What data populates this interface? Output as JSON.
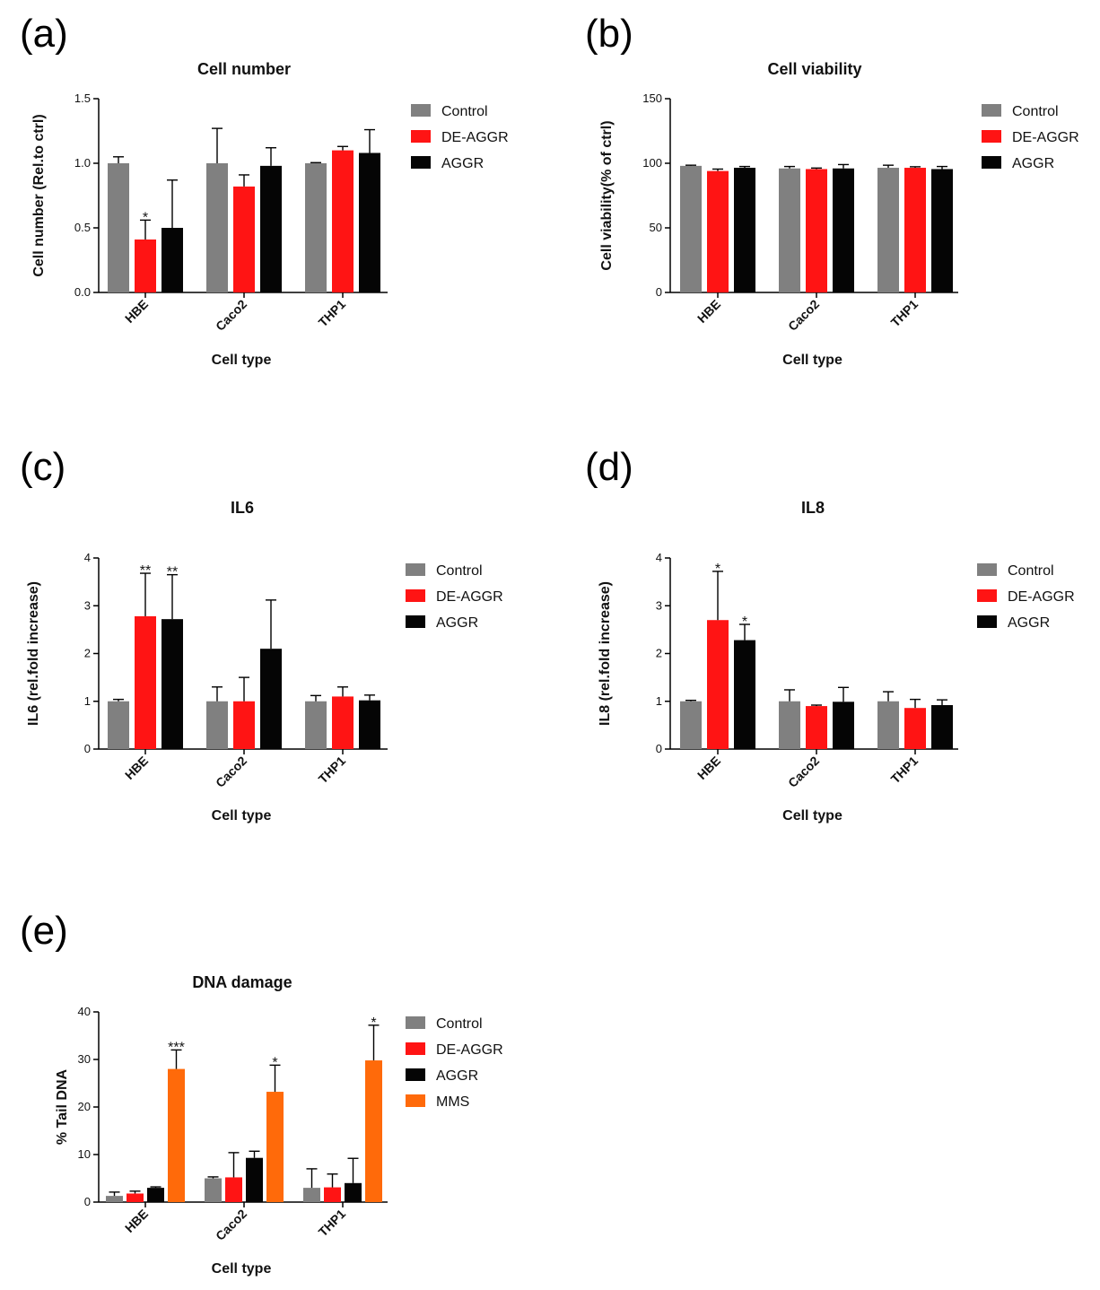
{
  "colors": {
    "Control": "#808080",
    "DE-AGGR": "#ff1414",
    "AGGR": "#050505",
    "MMS": "#ff6a0a"
  },
  "chart_data": [
    {
      "panel": "(a)",
      "type": "bar",
      "title": "Cell number",
      "xlabel": "Cell type",
      "ylabel": "Cell number (Rel.to ctrl)",
      "ylim": [
        0,
        1.5
      ],
      "yticks": [
        "0.0",
        "0.5",
        "1.0",
        "1.5"
      ],
      "ytick_values": [
        0,
        0.5,
        1.0,
        1.5
      ],
      "categories": [
        "HBE",
        "Caco2",
        "THP1"
      ],
      "legend": [
        "Control",
        "DE-AGGR",
        "AGGR"
      ],
      "series": [
        {
          "name": "Control",
          "values": [
            1.0,
            1.0,
            1.0
          ],
          "errors": [
            0.05,
            0.27,
            0.005
          ],
          "sig": [
            "",
            "",
            ""
          ]
        },
        {
          "name": "DE-AGGR",
          "values": [
            0.41,
            0.82,
            1.1
          ],
          "errors": [
            0.15,
            0.09,
            0.03
          ],
          "sig": [
            "*",
            "",
            ""
          ]
        },
        {
          "name": "AGGR",
          "values": [
            0.5,
            0.98,
            1.08
          ],
          "errors": [
            0.37,
            0.14,
            0.18
          ],
          "sig": [
            "",
            "",
            ""
          ]
        }
      ]
    },
    {
      "panel": "(b)",
      "type": "bar",
      "title": "Cell viability",
      "xlabel": "Cell type",
      "ylabel": "Cell viability(% of ctrl)",
      "ylim": [
        0,
        150
      ],
      "yticks": [
        "0",
        "50",
        "100",
        "150"
      ],
      "ytick_values": [
        0,
        50,
        100,
        150
      ],
      "categories": [
        "HBE",
        "Caco2",
        "THP1"
      ],
      "legend": [
        "Control",
        "DE-AGGR",
        "AGGR"
      ],
      "series": [
        {
          "name": "Control",
          "values": [
            98,
            96,
            96.5
          ],
          "errors": [
            0.5,
            1.5,
            2
          ],
          "sig": [
            "",
            "",
            ""
          ]
        },
        {
          "name": "DE-AGGR",
          "values": [
            94,
            95.5,
            96.5
          ],
          "errors": [
            1.5,
            0.8,
            0.8
          ],
          "sig": [
            "",
            "",
            ""
          ]
        },
        {
          "name": "AGGR",
          "values": [
            96.5,
            96,
            95.5
          ],
          "errors": [
            1,
            3,
            2
          ],
          "sig": [
            "",
            "",
            ""
          ]
        }
      ]
    },
    {
      "panel": "(c)",
      "type": "bar",
      "title": "IL6",
      "xlabel": "Cell type",
      "ylabel": "IL6 (rel.fold increase)",
      "ylim": [
        0,
        4
      ],
      "yticks": [
        "0",
        "1",
        "2",
        "3",
        "4"
      ],
      "ytick_values": [
        0,
        1,
        2,
        3,
        4
      ],
      "categories": [
        "HBE",
        "Caco2",
        "THP1"
      ],
      "legend": [
        "Control",
        "DE-AGGR",
        "AGGR"
      ],
      "series": [
        {
          "name": "Control",
          "values": [
            1.0,
            1.0,
            1.0
          ],
          "errors": [
            0.04,
            0.3,
            0.12
          ],
          "sig": [
            "",
            "",
            ""
          ]
        },
        {
          "name": "DE-AGGR",
          "values": [
            2.78,
            1.0,
            1.1
          ],
          "errors": [
            0.9,
            0.5,
            0.2
          ],
          "sig": [
            "**",
            "",
            ""
          ]
        },
        {
          "name": "AGGR",
          "values": [
            2.72,
            2.1,
            1.02
          ],
          "errors": [
            0.93,
            1.02,
            0.11
          ],
          "sig": [
            "**",
            "",
            ""
          ]
        }
      ]
    },
    {
      "panel": "(d)",
      "type": "bar",
      "title": "IL8",
      "xlabel": "Cell type",
      "ylabel": "IL8 (rel.fold increase)",
      "ylim": [
        0,
        4
      ],
      "yticks": [
        "0",
        "1",
        "2",
        "3",
        "4"
      ],
      "ytick_values": [
        0,
        1,
        2,
        3,
        4
      ],
      "categories": [
        "HBE",
        "Caco2",
        "THP1"
      ],
      "legend": [
        "Control",
        "DE-AGGR",
        "AGGR"
      ],
      "series": [
        {
          "name": "Control",
          "values": [
            1.0,
            1.0,
            1.0
          ],
          "errors": [
            0.02,
            0.24,
            0.2
          ],
          "sig": [
            "",
            "",
            ""
          ]
        },
        {
          "name": "DE-AGGR",
          "values": [
            2.7,
            0.9,
            0.86
          ],
          "errors": [
            1.02,
            0.02,
            0.18
          ],
          "sig": [
            "*",
            "",
            ""
          ]
        },
        {
          "name": "AGGR",
          "values": [
            2.28,
            0.99,
            0.92
          ],
          "errors": [
            0.33,
            0.3,
            0.11
          ],
          "sig": [
            "*",
            "",
            ""
          ]
        }
      ]
    },
    {
      "panel": "(e)",
      "type": "bar",
      "title": "DNA damage",
      "xlabel": "Cell type",
      "ylabel": "% Tail DNA",
      "ylim": [
        0,
        40
      ],
      "yticks": [
        "0",
        "10",
        "20",
        "30",
        "40"
      ],
      "ytick_values": [
        0,
        10,
        20,
        30,
        40
      ],
      "categories": [
        "HBE",
        "Caco2",
        "THP1"
      ],
      "legend": [
        "Control",
        "DE-AGGR",
        "AGGR",
        "MMS"
      ],
      "series": [
        {
          "name": "Control",
          "values": [
            1.3,
            5.0,
            3.0
          ],
          "errors": [
            0.8,
            0.3,
            4.0
          ],
          "sig": [
            "",
            "",
            ""
          ]
        },
        {
          "name": "DE-AGGR",
          "values": [
            1.8,
            5.2,
            3.1
          ],
          "errors": [
            0.5,
            5.2,
            2.8
          ],
          "sig": [
            "",
            "",
            ""
          ]
        },
        {
          "name": "AGGR",
          "values": [
            3.0,
            9.3,
            4.0
          ],
          "errors": [
            0.2,
            1.4,
            5.2
          ],
          "sig": [
            "",
            "",
            ""
          ]
        },
        {
          "name": "MMS",
          "values": [
            28.0,
            23.2,
            29.8
          ],
          "errors": [
            4.0,
            5.6,
            7.4
          ],
          "sig": [
            "***",
            "*",
            "*"
          ]
        }
      ]
    }
  ]
}
